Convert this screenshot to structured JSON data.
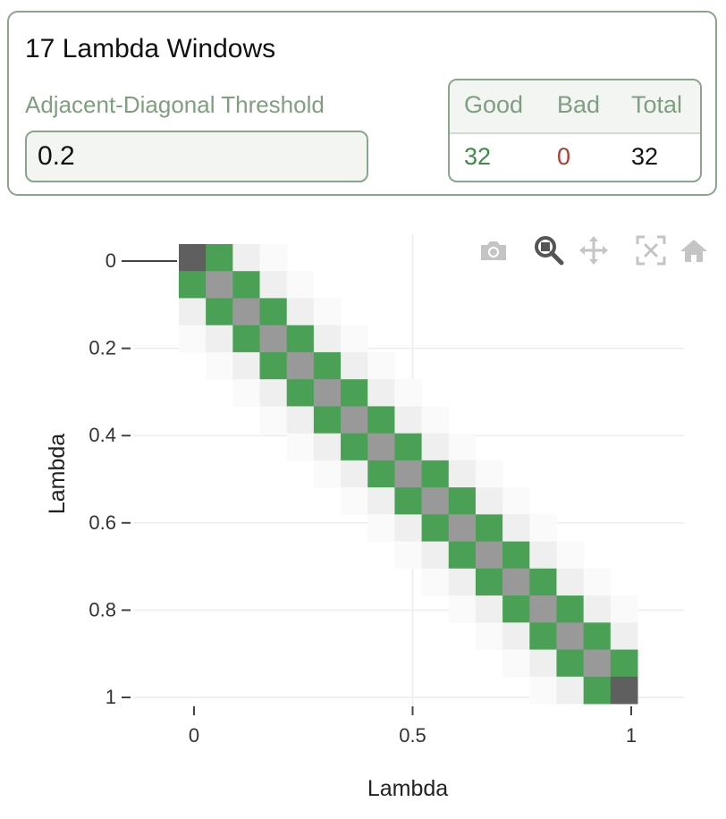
{
  "panel": {
    "title": "17 Lambda Windows",
    "threshold_label": "Adjacent-Diagonal Threshold",
    "threshold_value": "0.2"
  },
  "stats": {
    "headers": {
      "good": "Good",
      "bad": "Bad",
      "total": "Total"
    },
    "values": {
      "good": "32",
      "bad": "0",
      "total": "32"
    }
  },
  "modebar": [
    "camera-icon",
    "zoom-icon",
    "pan-icon",
    "autoscale-icon",
    "reset-axes-icon"
  ],
  "colors": {
    "accent": "#7f9f7f",
    "border": "#8aa68a",
    "good": "#3d8b45",
    "bad": "#b23a2e",
    "diag": "#999999",
    "corner": "#5f5f5f",
    "cell_green": "#4aa155",
    "near_light": "#efefef",
    "far_light": "#fafafa"
  },
  "chart_data": {
    "type": "heatmap",
    "xlabel": "Lambda",
    "ylabel": "Lambda",
    "n": 17,
    "x_ticks": [
      {
        "value": 0,
        "label": "0"
      },
      {
        "value": 0.5,
        "label": "0.5"
      },
      {
        "value": 1,
        "label": "1"
      }
    ],
    "y_ticks": [
      {
        "value": 0,
        "label": "0"
      },
      {
        "value": 0.2,
        "label": "0.2"
      },
      {
        "value": 0.4,
        "label": "0.4"
      },
      {
        "value": 0.6,
        "label": "0.6"
      },
      {
        "value": 0.8,
        "label": "0.8"
      },
      {
        "value": 1,
        "label": "1"
      }
    ],
    "y_reversed": true,
    "cell_categories": {
      "diagonal": "gray",
      "corner_first": "dark-gray",
      "corner_last": "dark-gray",
      "offset_1": "green",
      "offset_2": "light-gray",
      "offset_3": "very-light-gray"
    }
  }
}
